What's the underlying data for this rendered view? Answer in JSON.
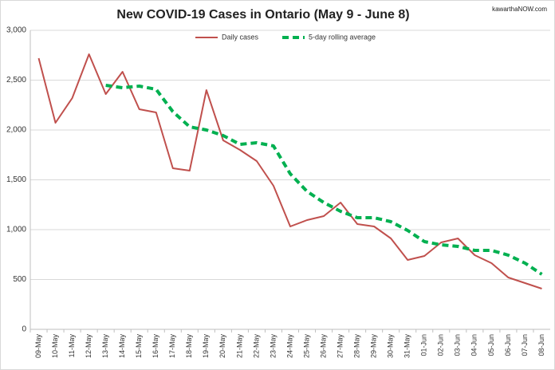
{
  "chart_data": {
    "type": "line",
    "title": "New COVID-19 Cases in Ontario (May 9 - June 8)",
    "annotation": "kawarthaNOW.com",
    "categories": [
      "09-May",
      "10-May",
      "11-May",
      "12-May",
      "13-May",
      "14-May",
      "15-May",
      "16-May",
      "17-May",
      "18-May",
      "19-May",
      "20-May",
      "21-May",
      "22-May",
      "23-May",
      "24-May",
      "25-May",
      "26-May",
      "27-May",
      "28-May",
      "29-May",
      "30-May",
      "31-May",
      "01-Jun",
      "02-Jun",
      "03-Jun",
      "04-Jun",
      "05-Jun",
      "06-Jun",
      "07-Jun",
      "08-Jun"
    ],
    "series": [
      {
        "name": "Daily cases",
        "color": "#c0504d",
        "dashed": false,
        "values": [
          2720,
          2072,
          2320,
          2760,
          2360,
          2584,
          2208,
          2176,
          1616,
          1592,
          2400,
          1896,
          1800,
          1688,
          1440,
          1032,
          1096,
          1136,
          1272,
          1056,
          1032,
          912,
          696,
          736,
          872,
          912,
          744,
          664,
          520,
          464,
          408
        ]
      },
      {
        "name": "5-day rolling average",
        "color": "#00b050",
        "dashed": true,
        "values": [
          null,
          null,
          null,
          null,
          2448,
          2424,
          2440,
          2408,
          2184,
          2032,
          2000,
          1944,
          1856,
          1872,
          1840,
          1560,
          1384,
          1272,
          1184,
          1120,
          1120,
          1080,
          992,
          880,
          848,
          832,
          792,
          792,
          744,
          664,
          552
        ]
      }
    ],
    "ylim": [
      0,
      3000
    ],
    "yticks": [
      0,
      500,
      {
        "value": 1000,
        "label": "1,000"
      },
      {
        "value": 1500,
        "label": "1,500"
      },
      {
        "value": 2000,
        "label": "2,000"
      },
      {
        "value": 2500,
        "label": "2,500"
      },
      {
        "value": 3000,
        "label": "3,000"
      }
    ],
    "grid": true,
    "legend": "top"
  }
}
